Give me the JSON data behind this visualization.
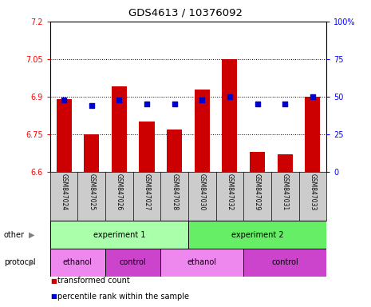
{
  "title": "GDS4613 / 10376092",
  "samples": [
    "GSM847024",
    "GSM847025",
    "GSM847026",
    "GSM847027",
    "GSM847028",
    "GSM847030",
    "GSM847032",
    "GSM847029",
    "GSM847031",
    "GSM847033"
  ],
  "transformed_count": [
    6.89,
    6.75,
    6.94,
    6.8,
    6.77,
    6.93,
    7.05,
    6.68,
    6.67,
    6.9
  ],
  "percentile_rank": [
    48,
    44,
    48,
    45,
    45,
    48,
    50,
    45,
    45,
    50
  ],
  "ylim_left": [
    6.6,
    7.2
  ],
  "ylim_right": [
    0,
    100
  ],
  "yticks_left": [
    6.6,
    6.75,
    6.9,
    7.05,
    7.2
  ],
  "yticks_right": [
    0,
    25,
    50,
    75,
    100
  ],
  "ytick_labels_left": [
    "6.6",
    "6.75",
    "6.9",
    "7.05",
    "7.2"
  ],
  "ytick_labels_right": [
    "0",
    "25",
    "50",
    "75",
    "100%"
  ],
  "hlines": [
    6.75,
    6.9,
    7.05
  ],
  "bar_color": "#cc0000",
  "dot_color": "#0000cc",
  "bar_bottom": 6.6,
  "bar_width": 0.55,
  "group1_label": "experiment 1",
  "group2_label": "experiment 2",
  "group1_color": "#aaffaa",
  "group2_color": "#66ee66",
  "ethanol_color": "#ee88ee",
  "control_color": "#cc44cc",
  "ethanol_label": "ethanol",
  "control_label": "control",
  "other_label": "other",
  "protocol_label": "protocol",
  "legend_red_label": "transformed count",
  "legend_blue_label": "percentile rank within the sample",
  "bar_bg_color": "#cccccc",
  "n_exp1": 5,
  "n_exp2": 5,
  "n_eth1": 2,
  "n_ctrl1": 2,
  "n_eth2": 3,
  "n_ctrl2": 3,
  "protocol_splits": [
    2,
    4,
    7
  ]
}
